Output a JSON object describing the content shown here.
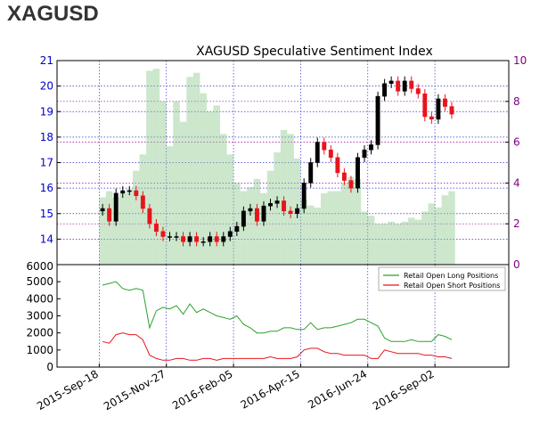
{
  "page": {
    "title": "XAGUSD"
  },
  "colors": {
    "price_axis": "#0000cc",
    "sentiment_axis": "#800080",
    "long": "#2ca02c",
    "short": "#e8141c",
    "bars": "#8fc98f",
    "candle_up": "#000000",
    "candle_down": "#e8141c"
  },
  "chart_data": [
    {
      "type": "candlestick",
      "title": "XAGUSD Speculative Sentiment Index",
      "ylim": [
        13,
        21
      ],
      "y_ticks": [
        14,
        15,
        16,
        17,
        18,
        19,
        20,
        21
      ],
      "y2lim": [
        0,
        10
      ],
      "y2_ticks": [
        0,
        2,
        4,
        6,
        8,
        10
      ],
      "x_ticks": [
        "2015-Sep-18",
        "2015-Nov-27",
        "2016-Feb-05",
        "2016-Apr-15",
        "2016-Jun-24",
        "2016-Sep-02"
      ],
      "grid": true,
      "price_series": {
        "x": [
          "2015-09-18",
          "2015-09-25",
          "2015-10-02",
          "2015-10-09",
          "2015-10-16",
          "2015-10-23",
          "2015-10-30",
          "2015-11-06",
          "2015-11-13",
          "2015-11-20",
          "2015-11-27",
          "2015-12-04",
          "2015-12-11",
          "2015-12-18",
          "2015-12-25",
          "2016-01-01",
          "2016-01-08",
          "2016-01-15",
          "2016-01-22",
          "2016-01-29",
          "2016-02-05",
          "2016-02-12",
          "2016-02-19",
          "2016-02-26",
          "2016-03-04",
          "2016-03-11",
          "2016-03-18",
          "2016-03-25",
          "2016-04-01",
          "2016-04-08",
          "2016-04-15",
          "2016-04-22",
          "2016-04-29",
          "2016-05-06",
          "2016-05-13",
          "2016-05-20",
          "2016-05-27",
          "2016-06-03",
          "2016-06-10",
          "2016-06-17",
          "2016-06-24",
          "2016-07-01",
          "2016-07-08",
          "2016-07-15",
          "2016-07-22",
          "2016-07-29",
          "2016-08-05",
          "2016-08-12",
          "2016-08-19",
          "2016-08-26",
          "2016-09-02",
          "2016-09-09",
          "2016-09-16"
        ],
        "values": [
          15.2,
          14.7,
          15.8,
          15.9,
          15.9,
          15.7,
          15.2,
          14.6,
          14.3,
          14.1,
          14.1,
          14.1,
          13.9,
          14.1,
          13.9,
          13.9,
          14.1,
          13.9,
          14.1,
          14.3,
          14.5,
          15.1,
          15.2,
          14.7,
          15.3,
          15.4,
          15.5,
          15.1,
          15.0,
          15.2,
          16.2,
          17.0,
          17.8,
          17.5,
          17.2,
          16.6,
          16.3,
          16.0,
          17.2,
          17.5,
          17.7,
          19.6,
          20.1,
          20.2,
          19.8,
          20.2,
          19.9,
          19.7,
          18.8,
          18.7,
          19.5,
          19.2,
          18.9
        ]
      },
      "sentiment_bars": {
        "x": [
          "2015-09-18",
          "2015-09-25",
          "2015-10-02",
          "2015-10-09",
          "2015-10-16",
          "2015-10-23",
          "2015-10-30",
          "2015-11-06",
          "2015-11-13",
          "2015-11-20",
          "2015-11-27",
          "2015-12-04",
          "2015-12-11",
          "2015-12-18",
          "2015-12-25",
          "2016-01-01",
          "2016-01-08",
          "2016-01-15",
          "2016-01-22",
          "2016-01-29",
          "2016-02-05",
          "2016-02-12",
          "2016-02-19",
          "2016-02-26",
          "2016-03-04",
          "2016-03-11",
          "2016-03-18",
          "2016-03-25",
          "2016-04-01",
          "2016-04-08",
          "2016-04-15",
          "2016-04-22",
          "2016-04-29",
          "2016-05-06",
          "2016-05-13",
          "2016-05-20",
          "2016-05-27",
          "2016-06-03",
          "2016-06-10",
          "2016-06-17",
          "2016-06-24",
          "2016-07-01",
          "2016-07-08",
          "2016-07-15",
          "2016-07-22",
          "2016-07-29",
          "2016-08-05",
          "2016-08-12",
          "2016-08-19",
          "2016-08-26",
          "2016-09-02",
          "2016-09-09",
          "2016-09-16"
        ],
        "values": [
          3.3,
          3.6,
          3.3,
          3.5,
          3.7,
          4.6,
          5.4,
          9.5,
          9.6,
          8.0,
          5.8,
          8.0,
          7.0,
          9.2,
          9.4,
          8.4,
          7.5,
          7.8,
          6.4,
          5.4,
          4.0,
          3.6,
          3.8,
          4.2,
          3.5,
          4.6,
          5.5,
          6.6,
          6.4,
          5.2,
          3.2,
          2.9,
          2.8,
          3.5,
          3.6,
          3.6,
          4.0,
          4.3,
          4.2,
          2.6,
          2.4,
          2.0,
          2.0,
          2.1,
          2.0,
          2.1,
          2.3,
          2.2,
          2.6,
          3.0,
          2.8,
          3.4,
          3.6
        ]
      }
    },
    {
      "type": "line",
      "ylim": [
        0,
        6000
      ],
      "y_ticks": [
        0,
        1000,
        2000,
        3000,
        4000,
        5000,
        6000
      ],
      "legend_position": "top-right",
      "grid": false,
      "x": [
        "2015-09-18",
        "2015-09-25",
        "2015-10-02",
        "2015-10-09",
        "2015-10-16",
        "2015-10-23",
        "2015-10-30",
        "2015-11-06",
        "2015-11-13",
        "2015-11-20",
        "2015-11-27",
        "2015-12-04",
        "2015-12-11",
        "2015-12-18",
        "2015-12-25",
        "2016-01-01",
        "2016-01-08",
        "2016-01-15",
        "2016-01-22",
        "2016-01-29",
        "2016-02-05",
        "2016-02-12",
        "2016-02-19",
        "2016-02-26",
        "2016-03-04",
        "2016-03-11",
        "2016-03-18",
        "2016-03-25",
        "2016-04-01",
        "2016-04-08",
        "2016-04-15",
        "2016-04-22",
        "2016-04-29",
        "2016-05-06",
        "2016-05-13",
        "2016-05-20",
        "2016-05-27",
        "2016-06-03",
        "2016-06-10",
        "2016-06-17",
        "2016-06-24",
        "2016-07-01",
        "2016-07-08",
        "2016-07-15",
        "2016-07-22",
        "2016-07-29",
        "2016-08-05",
        "2016-08-12",
        "2016-08-19",
        "2016-08-26",
        "2016-09-02",
        "2016-09-09",
        "2016-09-16"
      ],
      "series": [
        {
          "name": "Retail Open Long Positions",
          "values": [
            4800,
            4900,
            5000,
            4600,
            4500,
            4600,
            4500,
            2300,
            3300,
            3500,
            3400,
            3600,
            3100,
            3700,
            3200,
            3400,
            3200,
            3000,
            2900,
            2800,
            3000,
            2500,
            2300,
            2000,
            2000,
            2100,
            2100,
            2300,
            2300,
            2200,
            2200,
            2600,
            2200,
            2300,
            2300,
            2400,
            2500,
            2600,
            2800,
            2800,
            2600,
            2400,
            1700,
            1500,
            1500,
            1500,
            1600,
            1500,
            1500,
            1500,
            1900,
            1800,
            1600
          ]
        },
        {
          "name": "Retail Open Short Positions",
          "values": [
            1500,
            1400,
            1900,
            2000,
            1900,
            1900,
            1600,
            700,
            500,
            400,
            400,
            500,
            500,
            400,
            400,
            500,
            500,
            400,
            500,
            500,
            500,
            500,
            500,
            500,
            500,
            600,
            500,
            500,
            500,
            600,
            1000,
            1100,
            1100,
            900,
            800,
            800,
            700,
            700,
            700,
            700,
            500,
            500,
            1000,
            900,
            800,
            800,
            800,
            800,
            700,
            700,
            600,
            600,
            500
          ]
        }
      ]
    }
  ]
}
